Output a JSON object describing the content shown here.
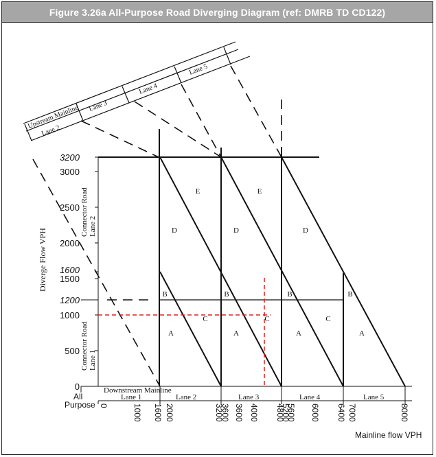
{
  "caption": "Figure 3.26a All-Purpose Road Diverging Diagram (ref: DMRB TD CD122)",
  "y_axis": {
    "title": "Diverge Flow VPH",
    "ticks": [
      {
        "label": "0",
        "italic": false
      },
      {
        "label": "500",
        "italic": false
      },
      {
        "label": "1000",
        "italic": false
      },
      {
        "label": "1200",
        "italic": true
      },
      {
        "label": "1500",
        "italic": false
      },
      {
        "label": "1600",
        "italic": true
      },
      {
        "label": "2000",
        "italic": false
      },
      {
        "label": "2500",
        "italic": false
      },
      {
        "label": "3000",
        "italic": false
      },
      {
        "label": "3200",
        "italic": true
      }
    ]
  },
  "x_axis": {
    "title": "Mainline flow VPH",
    "ticks": [
      "0",
      "1000",
      "1600",
      "2000",
      "3200",
      "3600",
      "3600",
      "4000",
      "4800",
      "5200",
      "5600",
      "6000",
      "6400",
      "7000",
      "8000"
    ]
  },
  "row_labels": {
    "all": "All",
    "purpose": "Purpose"
  },
  "downstream_mainline": {
    "title": "Downstream Mainline",
    "lanes": [
      "Lane 1",
      "Lane 2",
      "Lane 3",
      "Lane 4",
      "Lane 5"
    ]
  },
  "connector_road": {
    "lane1": "Connector Road\nLane 1",
    "lane2": "Connector Road\nLane 2"
  },
  "upstream_mainline": {
    "title": "Upstream Mainline",
    "lane2": "Lane 2",
    "lanes": [
      "Lane 3",
      "Lane 4",
      "Lane 5"
    ]
  },
  "regions": [
    "A",
    "B",
    "C",
    "D",
    "E",
    "A",
    "B",
    "C",
    "D",
    "E",
    "A",
    "B",
    "C",
    "D",
    "A",
    "B"
  ],
  "annotation": {
    "example_diverge": 1000,
    "example_mainline": 4300,
    "color": "#e0201b"
  },
  "colors": {
    "header_bg": "#a6a6a6",
    "header_text": "#ffffff",
    "line": "#111111",
    "dash_red": "#e0201b"
  }
}
